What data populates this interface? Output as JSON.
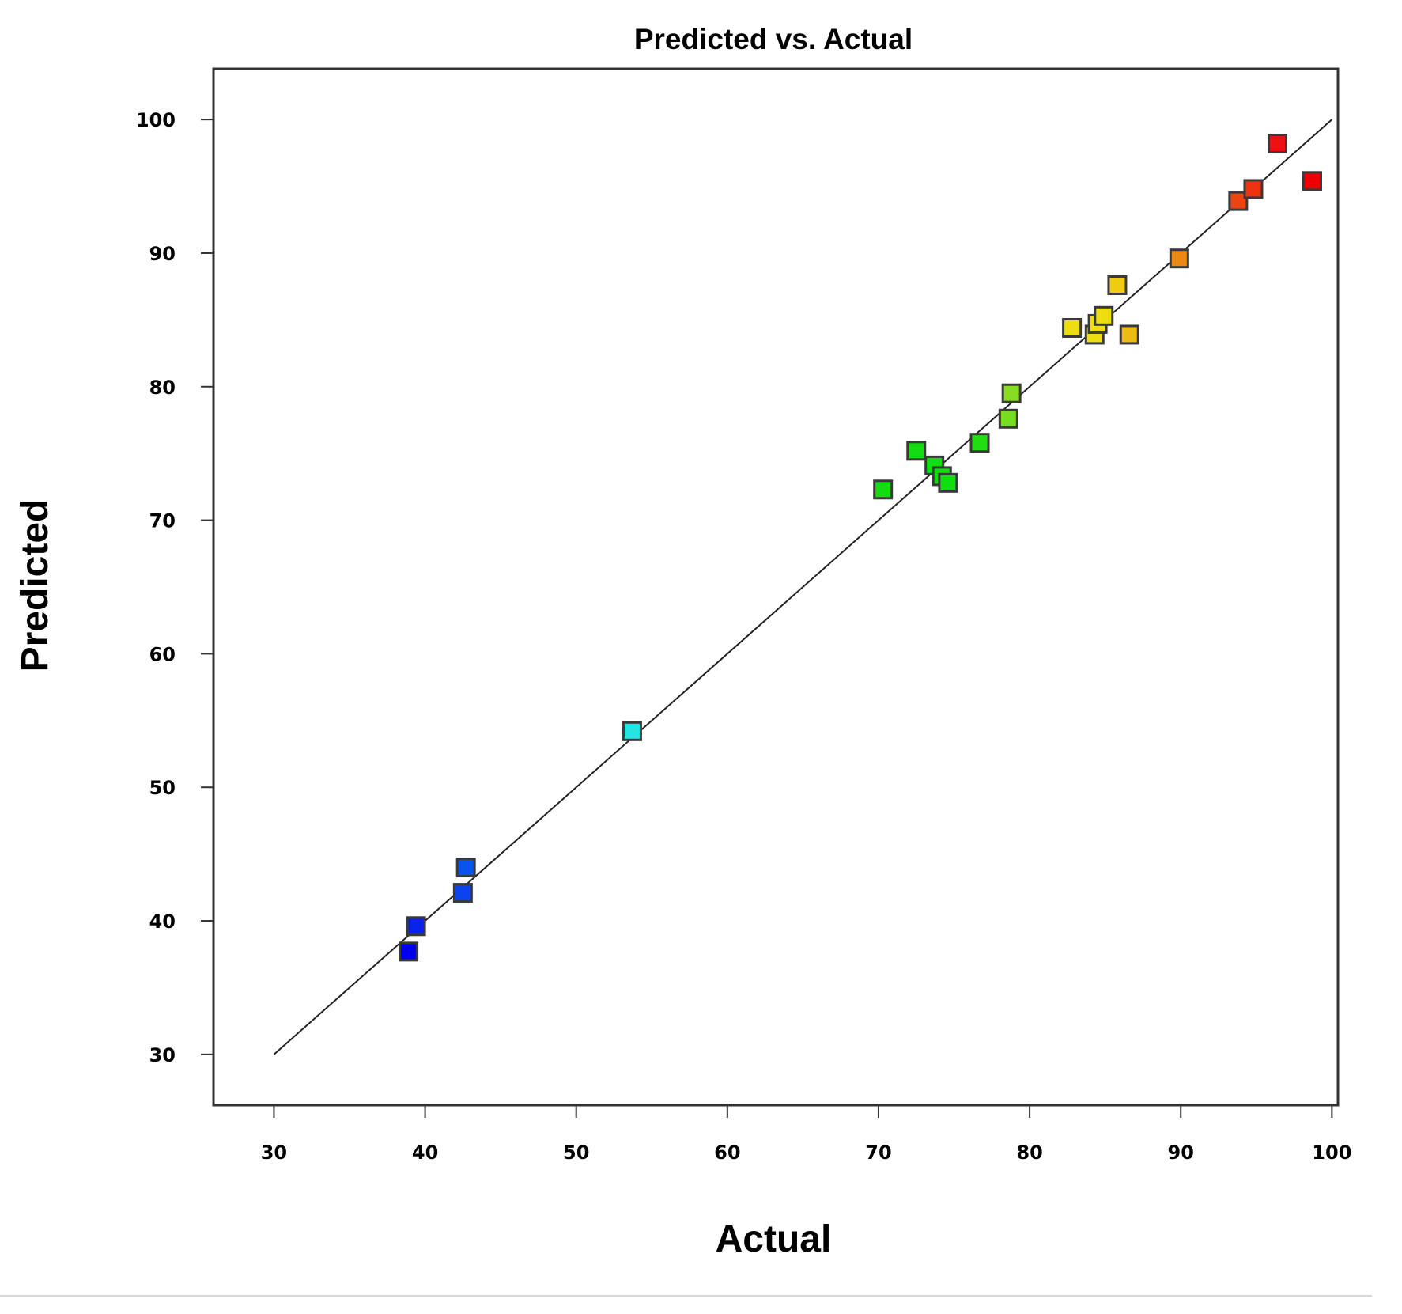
{
  "chart_data": {
    "type": "scatter",
    "title": "Predicted vs. Actual",
    "xlabel": "Actual",
    "ylabel": "Predicted",
    "xlim": [
      26,
      100.4
    ],
    "ylim": [
      26.2,
      103.8
    ],
    "xticks": [
      30,
      40,
      50,
      60,
      70,
      80,
      90,
      100
    ],
    "yticks": [
      30,
      40,
      50,
      60,
      70,
      80,
      90,
      100
    ],
    "fit_line": {
      "from": [
        30,
        30
      ],
      "to": [
        100,
        100
      ]
    },
    "grid": false,
    "legend": "none",
    "color_scale": "points colored by actual value, blue (low) to red (high)",
    "points": [
      {
        "x": 38.9,
        "y": 37.7,
        "color": "#0000ee"
      },
      {
        "x": 39.4,
        "y": 39.6,
        "color": "#0a22ee"
      },
      {
        "x": 42.5,
        "y": 42.1,
        "color": "#0a44ee"
      },
      {
        "x": 42.7,
        "y": 44.0,
        "color": "#0a52ee"
      },
      {
        "x": 53.7,
        "y": 54.2,
        "color": "#22e6e6"
      },
      {
        "x": 70.3,
        "y": 72.3,
        "color": "#11dd11"
      },
      {
        "x": 72.5,
        "y": 75.2,
        "color": "#11dd11"
      },
      {
        "x": 73.7,
        "y": 74.1,
        "color": "#11dd11"
      },
      {
        "x": 74.2,
        "y": 73.3,
        "color": "#11dd11"
      },
      {
        "x": 74.6,
        "y": 72.8,
        "color": "#11dd11"
      },
      {
        "x": 76.7,
        "y": 75.8,
        "color": "#22dd11"
      },
      {
        "x": 78.6,
        "y": 77.6,
        "color": "#77dd22"
      },
      {
        "x": 78.8,
        "y": 79.5,
        "color": "#88dd22"
      },
      {
        "x": 82.8,
        "y": 84.4,
        "color": "#eedd11"
      },
      {
        "x": 84.3,
        "y": 83.9,
        "color": "#eedd11"
      },
      {
        "x": 84.5,
        "y": 84.7,
        "color": "#eedd11"
      },
      {
        "x": 84.9,
        "y": 85.3,
        "color": "#eedd11"
      },
      {
        "x": 85.8,
        "y": 87.6,
        "color": "#eecc11"
      },
      {
        "x": 86.6,
        "y": 83.9,
        "color": "#eebb11"
      },
      {
        "x": 89.9,
        "y": 89.6,
        "color": "#ee8811"
      },
      {
        "x": 93.8,
        "y": 93.9,
        "color": "#ee4411"
      },
      {
        "x": 94.8,
        "y": 94.8,
        "color": "#ee3311"
      },
      {
        "x": 96.4,
        "y": 98.2,
        "color": "#ee1111"
      },
      {
        "x": 98.7,
        "y": 95.4,
        "color": "#ee0000"
      }
    ]
  }
}
